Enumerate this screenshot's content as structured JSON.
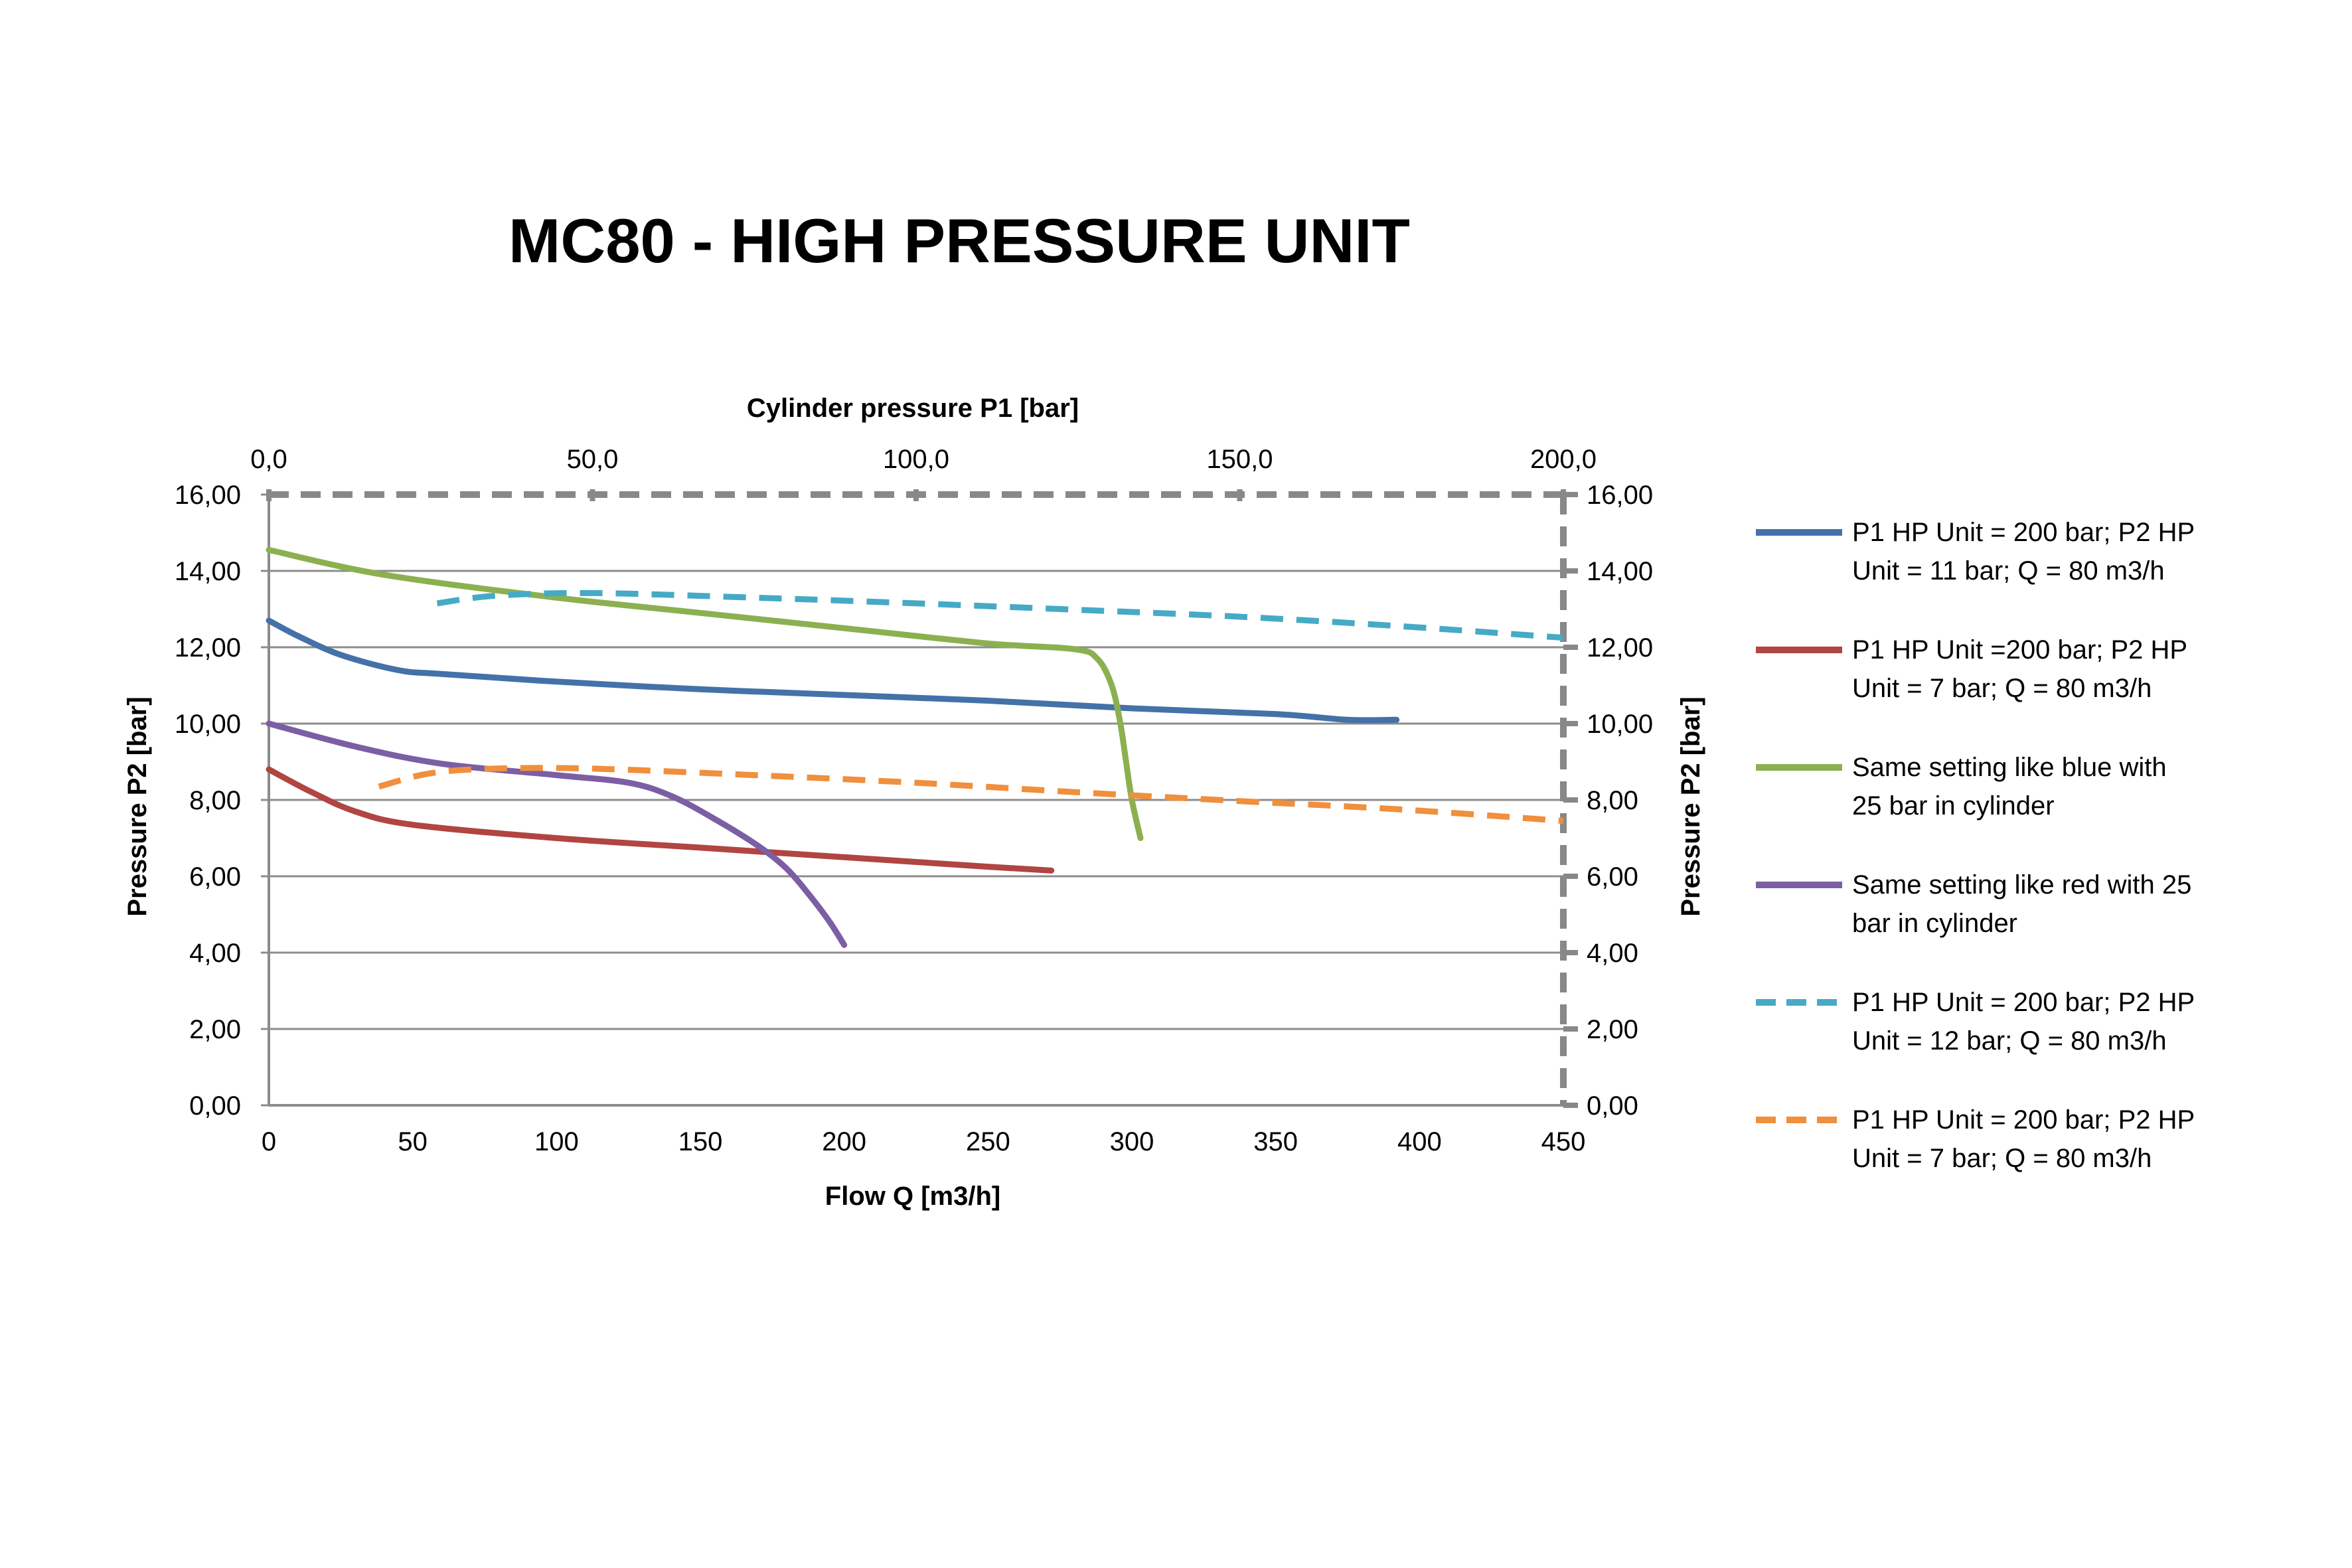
{
  "chart_data": {
    "type": "line",
    "title": "MC80 - HIGH PRESSURE UNIT",
    "xlabel": "Flow Q [m3/h]",
    "x2label": "Cylinder pressure P1 [bar]",
    "ylabel": "Pressure P2 [bar]",
    "y2label": "Pressure P2 [bar]",
    "xlim": [
      0,
      450
    ],
    "x2lim": [
      0,
      200
    ],
    "ylim": [
      0,
      16
    ],
    "x_ticks": [
      "0",
      "50",
      "100",
      "150",
      "200",
      "250",
      "300",
      "350",
      "400",
      "450"
    ],
    "x2_ticks": [
      "0,0",
      "50,0",
      "100,0",
      "150,0",
      "200,0"
    ],
    "y_ticks": [
      "0,00",
      "2,00",
      "4,00",
      "6,00",
      "8,00",
      "10,00",
      "12,00",
      "14,00",
      "16,00"
    ],
    "y2_ticks": [
      "0,00",
      "2,00",
      "4,00",
      "6,00",
      "8,00",
      "10,00",
      "12,00",
      "14,00",
      "16,00"
    ],
    "grid": true,
    "legend_position": "right",
    "series": [
      {
        "name": "P1 HP Unit = 200 bar; P2 HP Unit = 11 bar; Q = 80 m3/h",
        "legend_lines": [
          "P1 HP Unit = 200 bar; P2 HP",
          "Unit = 11 bar; Q = 80 m3/h"
        ],
        "color": "#4472A8",
        "dashed": false,
        "axis": "bottom",
        "x": [
          0,
          10,
          25,
          45,
          60,
          100,
          150,
          200,
          250,
          300,
          350,
          375,
          392
        ],
        "y": [
          12.7,
          12.3,
          11.8,
          11.4,
          11.3,
          11.1,
          10.9,
          10.75,
          10.6,
          10.4,
          10.25,
          10.1,
          10.1
        ]
      },
      {
        "name": "P1 HP Unit =200 bar; P2 HP Unit = 7 bar; Q = 80 m3/h",
        "legend_lines": [
          "P1 HP Unit =200 bar; P2 HP",
          "Unit =  7 bar; Q = 80 m3/h"
        ],
        "color": "#B04542",
        "dashed": false,
        "axis": "bottom",
        "x": [
          0,
          15,
          30,
          50,
          100,
          150,
          200,
          250,
          272
        ],
        "y": [
          8.8,
          8.2,
          7.7,
          7.35,
          7.0,
          6.75,
          6.5,
          6.25,
          6.15
        ]
      },
      {
        "name": "Same setting like blue with 25 bar in cylinder",
        "legend_lines": [
          "Same setting like blue with",
          "25 bar in cylinder"
        ],
        "color": "#8CB050",
        "dashed": false,
        "axis": "bottom",
        "x": [
          0,
          40,
          100,
          150,
          200,
          250,
          280,
          288,
          293,
          296,
          298,
          300,
          303
        ],
        "y": [
          14.55,
          13.9,
          13.3,
          12.9,
          12.5,
          12.1,
          11.95,
          11.7,
          11.0,
          10.0,
          9.0,
          8.0,
          7.0
        ]
      },
      {
        "name": "Same setting like red with 25 bar in cylinder",
        "legend_lines": [
          "Same setting like red with 25",
          "bar in cylinder"
        ],
        "color": "#7B5EA4",
        "dashed": false,
        "axis": "bottom",
        "x": [
          0,
          30,
          60,
          100,
          125,
          140,
          155,
          170,
          180,
          188,
          195,
          200
        ],
        "y": [
          10.0,
          9.4,
          8.95,
          8.65,
          8.45,
          8.1,
          7.5,
          6.8,
          6.2,
          5.5,
          4.8,
          4.2
        ]
      },
      {
        "name": "P1 HP Unit = 200 bar; P2 HP Unit = 12 bar; Q = 80 m3/h",
        "legend_lines": [
          "P1 HP Unit = 200 bar; P2 HP",
          "Unit = 12 bar; Q = 80 m3/h"
        ],
        "color": "#46AAC5",
        "dashed": true,
        "axis": "top",
        "x": [
          26,
          35,
          50,
          75,
          100,
          125,
          150,
          175,
          200
        ],
        "y": [
          13.15,
          13.35,
          13.42,
          13.3,
          13.15,
          12.98,
          12.8,
          12.55,
          12.25
        ]
      },
      {
        "name": "P1 HP Unit = 200 bar; P2 HP Unit = 7 bar; Q = 80 m3/h",
        "legend_lines": [
          "P1 HP Unit = 200 bar; P2 HP",
          "Unit = 7 bar; Q = 80 m3/h"
        ],
        "color": "#F08F3C",
        "dashed": true,
        "axis": "top",
        "x": [
          17,
          25,
          35,
          50,
          75,
          100,
          125,
          150,
          175,
          200
        ],
        "y": [
          8.35,
          8.7,
          8.82,
          8.82,
          8.65,
          8.45,
          8.2,
          7.97,
          7.75,
          7.45
        ]
      }
    ]
  }
}
